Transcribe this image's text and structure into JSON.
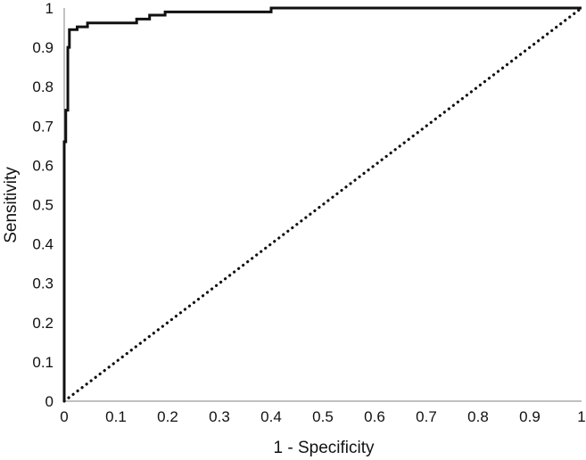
{
  "chart_data": {
    "type": "line",
    "title": "",
    "xlabel": "1 - Specificity",
    "ylabel": "Sensitivity",
    "xlim": [
      0,
      1
    ],
    "ylim": [
      0,
      1
    ],
    "grid": false,
    "xticks": [
      "0",
      "0.1",
      "0.2",
      "0.3",
      "0.4",
      "0.5",
      "0.6",
      "0.7",
      "0.8",
      "0.9",
      "1"
    ],
    "yticks": [
      "0",
      "0.1",
      "0.2",
      "0.3",
      "0.4",
      "0.5",
      "0.6",
      "0.7",
      "0.8",
      "0.9",
      "1"
    ],
    "series": [
      {
        "style": "solid",
        "color": "#111111",
        "x": [
          0,
          0,
          0.003,
          0.003,
          0.007,
          0.007,
          0.01,
          0.01,
          0.025,
          0.025,
          0.045,
          0.045,
          0.14,
          0.14,
          0.165,
          0.165,
          0.195,
          0.195,
          0.4,
          0.4,
          1
        ],
        "y": [
          0,
          0.66,
          0.66,
          0.74,
          0.74,
          0.9,
          0.9,
          0.945,
          0.945,
          0.952,
          0.952,
          0.962,
          0.962,
          0.972,
          0.972,
          0.982,
          0.982,
          0.99,
          0.99,
          1,
          1
        ]
      },
      {
        "style": "dotted",
        "color": "#111111",
        "x": [
          0,
          1
        ],
        "y": [
          0,
          1
        ]
      }
    ]
  }
}
